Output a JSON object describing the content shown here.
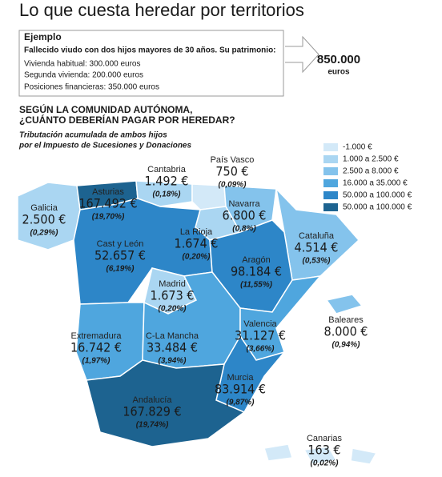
{
  "title": "Lo que cuesta heredar por territorios",
  "example": {
    "heading": "Ejemplo",
    "lines": [
      "Fallecido viudo con dos hijos mayores de 30 años. Su patrimonio:",
      "Vivienda habitual: 300.000 euros",
      "Segunda vivienda: 200.000 euros",
      "Posiciones financieras: 350.000 euros"
    ],
    "total": "850.000",
    "total_unit": "euros"
  },
  "subtitle": [
    "SEGÚN LA COMUNIDAD AUTÓNOMA,",
    "¿CUÁNTO DEBERÍAN PAGAR POR HEREDAR?"
  ],
  "note": [
    "Tributación acumulada de ambos hijos",
    "por el Impuesto de Sucesiones y Donaciones"
  ],
  "legend": [
    {
      "label": "-1.000 €",
      "color": "#d3e9f8"
    },
    {
      "label": "1.000 a 2.500 €",
      "color": "#aad6f2"
    },
    {
      "label": "2.500 a 8.000 €",
      "color": "#84c3ec"
    },
    {
      "label": "16.000 a 35.000 €",
      "color": "#4fa6de"
    },
    {
      "label": "50.000 a 100.000 €",
      "color": "#2d86c8"
    },
    {
      "label": "50.000 a 100.000 €",
      "color": "#1d6390"
    }
  ],
  "regions": [
    {
      "name": "Cantabria",
      "amount": "1.492 €",
      "share": "(0,18%)"
    },
    {
      "name": "País Vasco",
      "amount": "750 €",
      "share": "(0,09%)"
    },
    {
      "name": "Galicia",
      "amount": "2.500 €",
      "share": "(0,29%)"
    },
    {
      "name": "Asturias",
      "amount": "167.492 €",
      "share": "(19,70%)"
    },
    {
      "name": "Navarra",
      "amount": "6.800 €",
      "share": "(0,8%)"
    },
    {
      "name": "La Rioja",
      "amount": "1.674 €",
      "share": "(0,20%)"
    },
    {
      "name": "Cataluña",
      "amount": "4.514 €",
      "share": "(0,53%)"
    },
    {
      "name": "Cast y León",
      "amount": "52.657 €",
      "share": "(6,19%)"
    },
    {
      "name": "Aragón",
      "amount": "98.184 €",
      "share": "(11,55%)"
    },
    {
      "name": "Madrid",
      "amount": "1.673 €",
      "share": "(0,20%)"
    },
    {
      "name": "Extremadura",
      "amount": "16.742 €",
      "share": "(1,97%)"
    },
    {
      "name": "C-La Mancha",
      "amount": "33.484 €",
      "share": "(3,94%)"
    },
    {
      "name": "Valencia",
      "amount": "31.127 €",
      "share": "(3,66%)"
    },
    {
      "name": "Baleares",
      "amount": "8.000 €",
      "share": "(0,94%)"
    },
    {
      "name": "Murcia",
      "amount": "83.914 €",
      "share": "(9,87%)"
    },
    {
      "name": "Andalucía",
      "amount": "167.829 €",
      "share": "(19,74%)"
    },
    {
      "name": "Canarias",
      "amount": "163 €",
      "share": "(0,02%)"
    }
  ]
}
